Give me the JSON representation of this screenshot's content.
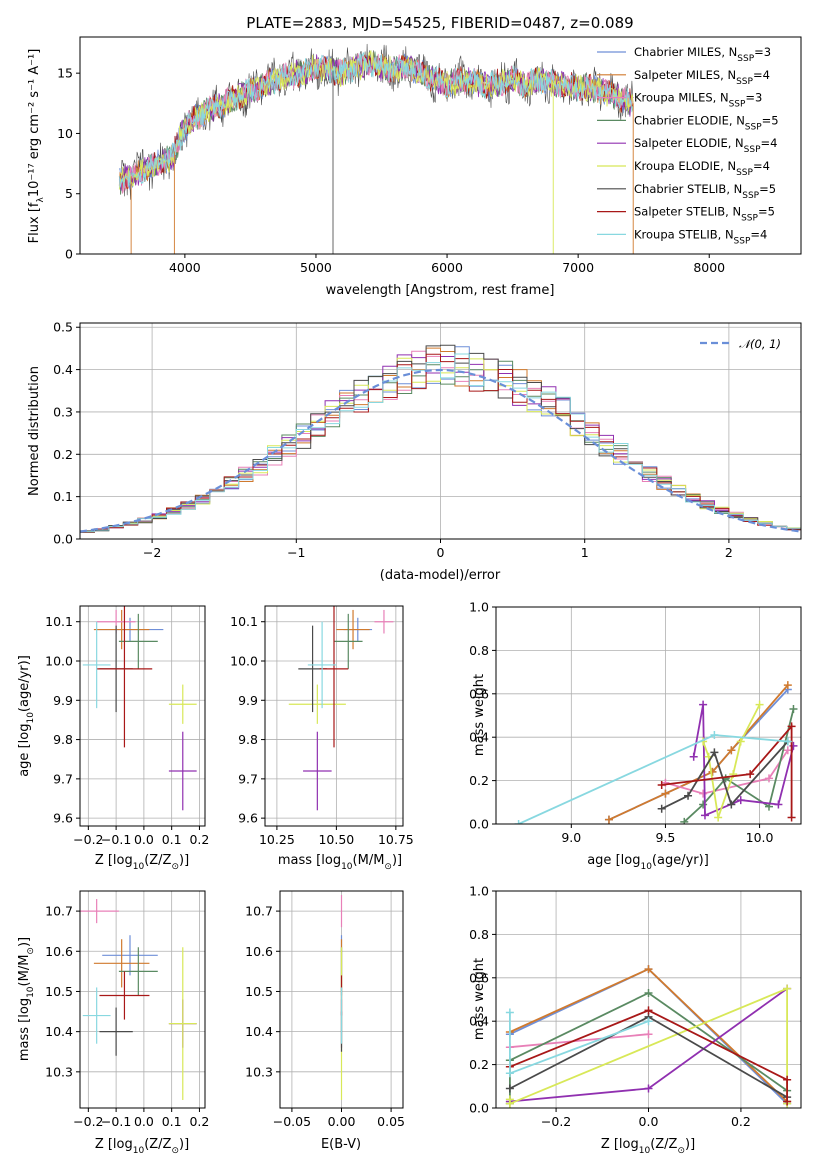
{
  "figure_title": "PLATE=2883, MJD=54525, FIBERID=0487, z=0.089",
  "series": [
    {
      "name": "Chabrier MILES",
      "nssp": "3",
      "color": "#6f8fd8"
    },
    {
      "name": "Salpeter MILES",
      "nssp": "4",
      "color": "#d07a2e"
    },
    {
      "name": "Kroupa MILES",
      "nssp": "3",
      "color": "#e880b8"
    },
    {
      "name": "Chabrier ELODIE",
      "nssp": "5",
      "color": "#5a8a62"
    },
    {
      "name": "Salpeter ELODIE",
      "nssp": "4",
      "color": "#9030b0"
    },
    {
      "name": "Kroupa ELODIE",
      "nssp": "4",
      "color": "#d8e858"
    },
    {
      "name": "Chabrier STELIB",
      "nssp": "5",
      "color": "#4a4a4a"
    },
    {
      "name": "Salpeter STELIB",
      "nssp": "5",
      "color": "#a81818"
    },
    {
      "name": "Kroupa STELIB",
      "nssp": "4",
      "color": "#88d8e0"
    }
  ],
  "chart_data": [
    {
      "id": "spectrum",
      "type": "line",
      "title": "PLATE=2883, MJD=54525, FIBERID=0487, z=0.089",
      "xlabel": "wavelength [Angstrom, rest frame]",
      "ylabel_main": "Flux [f",
      "ylabel_sub": "λ",
      "ylabel_rest": "10⁻¹⁷ erg cm⁻² s⁻¹ A⁻¹]",
      "xlim": [
        3200,
        8700
      ],
      "ylim": [
        0,
        18
      ],
      "xticks": [
        4000,
        5000,
        6000,
        7000,
        8000
      ],
      "yticks": [
        0,
        5,
        10,
        15
      ],
      "legend_position": "right",
      "nssp_prefix": "N",
      "nssp_sub": "SSP",
      "flux_x": [
        3500,
        3600,
        3700,
        3800,
        3900,
        4000,
        4100,
        4200,
        4300,
        4400,
        4500,
        4600,
        4700,
        4800,
        4900,
        5000,
        5100,
        5200,
        5300,
        5400,
        5500,
        5600,
        5700,
        5800,
        5900,
        6000,
        6100,
        6200,
        6300,
        6400,
        6500,
        6600,
        6700,
        6800,
        6900,
        7000,
        7100,
        7200,
        7300,
        7400
      ],
      "flux_y": [
        6.0,
        6.5,
        7.0,
        7.5,
        8.0,
        10.5,
        11.5,
        12.0,
        12.5,
        13.0,
        13.5,
        14.0,
        14.5,
        14.8,
        15.0,
        15.5,
        15.3,
        15.0,
        15.5,
        15.8,
        15.5,
        15.3,
        15.5,
        15.0,
        14.5,
        14.0,
        14.5,
        14.3,
        14.0,
        14.2,
        14.5,
        14.0,
        14.5,
        14.2,
        14.0,
        13.8,
        13.8,
        13.5,
        13.0,
        12.5
      ]
    },
    {
      "id": "residuals",
      "type": "step",
      "xlabel": "(data-model)/error",
      "ylabel": "Normed distribution",
      "xlim": [
        -2.5,
        2.5
      ],
      "ylim": [
        0,
        0.51
      ],
      "xticks": [
        -2,
        -1,
        0,
        1,
        2
      ],
      "yticks": [
        0.0,
        0.1,
        0.2,
        0.3,
        0.4,
        0.5
      ],
      "legend": "𝒩(0, 1)",
      "legend_position": "top-right",
      "grid": true
    },
    {
      "id": "age_vs_z",
      "type": "errorbar",
      "xlabel_main": "Z [log",
      "xlabel_sub": "10",
      "xlabel_rest": "(Z/Z",
      "xlabel_end": ")]",
      "ylabel_main": "age  [log",
      "ylabel_sub": "10",
      "ylabel_rest": "(age/yr)]",
      "xlim": [
        -0.23,
        0.22
      ],
      "ylim": [
        9.58,
        10.14
      ],
      "xticks": [
        -0.2,
        -0.1,
        0.0,
        0.1,
        0.2
      ],
      "yticks": [
        9.6,
        9.7,
        9.8,
        9.9,
        10.0,
        10.1
      ],
      "grid": true,
      "points": [
        {
          "x": -0.05,
          "y": 10.08,
          "xerr": 0.12,
          "yerr": 0.03
        },
        {
          "x": -0.08,
          "y": 10.08,
          "xerr": 0.1,
          "yerr": 0.05
        },
        {
          "x": -0.1,
          "y": 10.1,
          "xerr": 0.07,
          "yerr": 0.03
        },
        {
          "x": -0.02,
          "y": 10.05,
          "xerr": 0.07,
          "yerr": 0.07
        },
        {
          "x": 0.14,
          "y": 9.72,
          "xerr": 0.05,
          "yerr": 0.1
        },
        {
          "x": 0.14,
          "y": 9.89,
          "xerr": 0.05,
          "yerr": 0.05
        },
        {
          "x": -0.1,
          "y": 9.98,
          "xerr": 0.06,
          "yerr": 0.11
        },
        {
          "x": -0.07,
          "y": 9.98,
          "xerr": 0.1,
          "yerr": 0.2
        },
        {
          "x": -0.17,
          "y": 9.99,
          "xerr": 0.05,
          "yerr": 0.11
        }
      ]
    },
    {
      "id": "age_vs_mass",
      "type": "errorbar",
      "xlabel_main": "mass [log",
      "xlabel_sub": "10",
      "xlabel_rest": "(M/M",
      "xlabel_end": ")]",
      "ylabel_main": "",
      "xlim": [
        10.2,
        10.78
      ],
      "ylim": [
        9.58,
        10.14
      ],
      "xticks": [
        10.25,
        10.5,
        10.75
      ],
      "yticks": [
        9.6,
        9.7,
        9.8,
        9.9,
        10.0,
        10.1
      ],
      "grid": true,
      "points": [
        {
          "x": 10.59,
          "y": 10.08,
          "xerr": 0.06,
          "yerr": 0.03
        },
        {
          "x": 10.57,
          "y": 10.08,
          "xerr": 0.07,
          "yerr": 0.05
        },
        {
          "x": 10.7,
          "y": 10.1,
          "xerr": 0.04,
          "yerr": 0.03
        },
        {
          "x": 10.55,
          "y": 10.05,
          "xerr": 0.06,
          "yerr": 0.07
        },
        {
          "x": 10.42,
          "y": 9.72,
          "xerr": 0.06,
          "yerr": 0.1
        },
        {
          "x": 10.42,
          "y": 9.89,
          "xerr": 0.12,
          "yerr": 0.05
        },
        {
          "x": 10.4,
          "y": 9.98,
          "xerr": 0.06,
          "yerr": 0.11
        },
        {
          "x": 10.49,
          "y": 9.98,
          "xerr": 0.06,
          "yerr": 0.2
        },
        {
          "x": 10.44,
          "y": 9.99,
          "xerr": 0.06,
          "yerr": 0.11
        }
      ]
    },
    {
      "id": "weight_vs_age",
      "type": "line",
      "xlabel_main": "age  [log",
      "xlabel_sub": "10",
      "xlabel_rest": "(age/yr)]",
      "ylabel": "mass weight",
      "xlim": [
        8.6,
        10.22
      ],
      "ylim": [
        0,
        1.0
      ],
      "xticks": [
        9.0,
        9.5,
        10.0
      ],
      "yticks": [
        0.0,
        0.2,
        0.4,
        0.6,
        0.8,
        1.0
      ],
      "grid": true,
      "lines": [
        {
          "x": [
            9.2,
            9.5,
            9.75,
            9.85,
            10.15
          ],
          "y": [
            0.02,
            0.14,
            0.24,
            0.34,
            0.62
          ]
        },
        {
          "x": [
            9.2,
            9.5,
            9.75,
            9.85,
            10.15
          ],
          "y": [
            0.02,
            0.14,
            0.24,
            0.34,
            0.64
          ]
        },
        {
          "x": [
            9.5,
            9.7,
            10.05,
            10.15
          ],
          "y": [
            0.19,
            0.14,
            0.21,
            0.34
          ]
        },
        {
          "x": [
            9.6,
            9.7,
            9.82,
            10.05,
            10.18
          ],
          "y": [
            0.01,
            0.09,
            0.21,
            0.08,
            0.53
          ]
        },
        {
          "x": [
            9.65,
            9.7,
            9.71,
            9.9,
            10.1,
            10.18
          ],
          "y": [
            0.31,
            0.55,
            0.04,
            0.11,
            0.09,
            0.36
          ]
        },
        {
          "x": [
            9.7,
            9.73,
            9.78,
            9.86,
            9.9,
            10.0
          ],
          "y": [
            0.38,
            0.31,
            0.03,
            0.23,
            0.38,
            0.55
          ]
        },
        {
          "x": [
            9.48,
            9.62,
            9.76,
            9.85,
            10.15
          ],
          "y": [
            0.07,
            0.13,
            0.33,
            0.09,
            0.38
          ]
        },
        {
          "x": [
            9.48,
            9.95,
            10.17,
            10.17
          ],
          "y": [
            0.18,
            0.23,
            0.45,
            0.03
          ]
        },
        {
          "x": [
            8.72,
            9.76,
            10.15
          ],
          "y": [
            0.0,
            0.41,
            0.38
          ]
        }
      ]
    },
    {
      "id": "mass_vs_z",
      "type": "errorbar",
      "xlabel_main": "Z [log",
      "xlabel_sub": "10",
      "xlabel_rest": "(Z/Z",
      "xlabel_end": ")]",
      "ylabel_main": "mass [log",
      "ylabel_sub": "10",
      "ylabel_rest": "(M/M",
      "ylabel_end": ")]",
      "xlim": [
        -0.23,
        0.22
      ],
      "ylim": [
        10.21,
        10.75
      ],
      "xticks": [
        -0.2,
        -0.1,
        0.0,
        0.1,
        0.2
      ],
      "yticks": [
        10.3,
        10.4,
        10.5,
        10.6,
        10.7
      ],
      "grid": true,
      "points": [
        {
          "x": -0.05,
          "y": 10.59,
          "xerr": 0.1,
          "yerr": 0.05
        },
        {
          "x": -0.08,
          "y": 10.57,
          "xerr": 0.1,
          "yerr": 0.06
        },
        {
          "x": -0.17,
          "y": 10.7,
          "xerr": 0.08,
          "yerr": 0.03
        },
        {
          "x": -0.02,
          "y": 10.55,
          "xerr": 0.07,
          "yerr": 0.06
        },
        {
          "x": 0.14,
          "y": 10.42,
          "xerr": 0.05,
          "yerr": 0.06
        },
        {
          "x": 0.14,
          "y": 10.42,
          "xerr": 0.05,
          "yerr": 0.19
        },
        {
          "x": -0.1,
          "y": 10.4,
          "xerr": 0.06,
          "yerr": 0.06
        },
        {
          "x": -0.07,
          "y": 10.49,
          "xerr": 0.09,
          "yerr": 0.06
        },
        {
          "x": -0.17,
          "y": 10.44,
          "xerr": 0.05,
          "yerr": 0.07
        }
      ]
    },
    {
      "id": "mass_vs_ebv",
      "type": "errorbar",
      "xlabel": "E(B-V)",
      "xlim": [
        -0.062,
        0.062
      ],
      "ylim": [
        10.21,
        10.75
      ],
      "xticks": [
        -0.05,
        0.0,
        0.05
      ],
      "yticks": [
        10.3,
        10.4,
        10.5,
        10.6,
        10.7
      ],
      "grid": true,
      "points": [
        {
          "x": 0.0,
          "y": 10.59,
          "xerr": 0,
          "yerr": 0.05
        },
        {
          "x": 0.0,
          "y": 10.57,
          "xerr": 0,
          "yerr": 0.06
        },
        {
          "x": 0.0,
          "y": 10.7,
          "xerr": 0,
          "yerr": 0.04
        },
        {
          "x": 0.0,
          "y": 10.55,
          "xerr": 0,
          "yerr": 0.06
        },
        {
          "x": 0.0,
          "y": 10.42,
          "xerr": 0,
          "yerr": 0.06
        },
        {
          "x": 0.0,
          "y": 10.42,
          "xerr": 0,
          "yerr": 0.19
        },
        {
          "x": 0.0,
          "y": 10.4,
          "xerr": 0,
          "yerr": 0.05
        },
        {
          "x": 0.0,
          "y": 10.49,
          "xerr": 0,
          "yerr": 0.05
        },
        {
          "x": 0.0,
          "y": 10.44,
          "xerr": 0,
          "yerr": 0.07
        }
      ]
    },
    {
      "id": "weight_vs_z",
      "type": "line",
      "xlabel_main": "Z [log",
      "xlabel_sub": "10",
      "xlabel_rest": "(Z/Z",
      "xlabel_end": ")]",
      "ylabel": "mass weight",
      "xlim": [
        -0.33,
        0.33
      ],
      "ylim": [
        0,
        1.0
      ],
      "xticks": [
        -0.2,
        0.0,
        0.2
      ],
      "yticks": [
        0.0,
        0.2,
        0.4,
        0.6,
        0.8,
        1.0
      ],
      "grid": true,
      "lines": [
        {
          "x": [
            -0.3,
            0.0,
            0.3
          ],
          "y": [
            0.34,
            0.64,
            0.02
          ]
        },
        {
          "x": [
            -0.3,
            0.0,
            0.3
          ],
          "y": [
            0.35,
            0.64,
            0.03
          ]
        },
        {
          "x": [
            -0.3,
            0.0
          ],
          "y": [
            0.28,
            0.34
          ]
        },
        {
          "x": [
            -0.3,
            -0.3,
            0.0,
            0.3
          ],
          "y": [
            0.02,
            0.22,
            0.53,
            0.08
          ]
        },
        {
          "x": [
            -0.3,
            0.0,
            0.3
          ],
          "y": [
            0.03,
            0.09,
            0.55
          ]
        },
        {
          "x": [
            -0.3,
            -0.3,
            0.3,
            0.3
          ],
          "y": [
            0.04,
            0.02,
            0.55,
            0.02
          ]
        },
        {
          "x": [
            -0.3,
            0.0,
            0.3
          ],
          "y": [
            0.09,
            0.42,
            0.05
          ]
        },
        {
          "x": [
            -0.3,
            0.0,
            0.3,
            0.3
          ],
          "y": [
            0.19,
            0.45,
            0.13,
            0.03
          ]
        },
        {
          "x": [
            -0.3,
            -0.3,
            0.0
          ],
          "y": [
            0.44,
            0.16,
            0.4
          ]
        }
      ]
    }
  ]
}
